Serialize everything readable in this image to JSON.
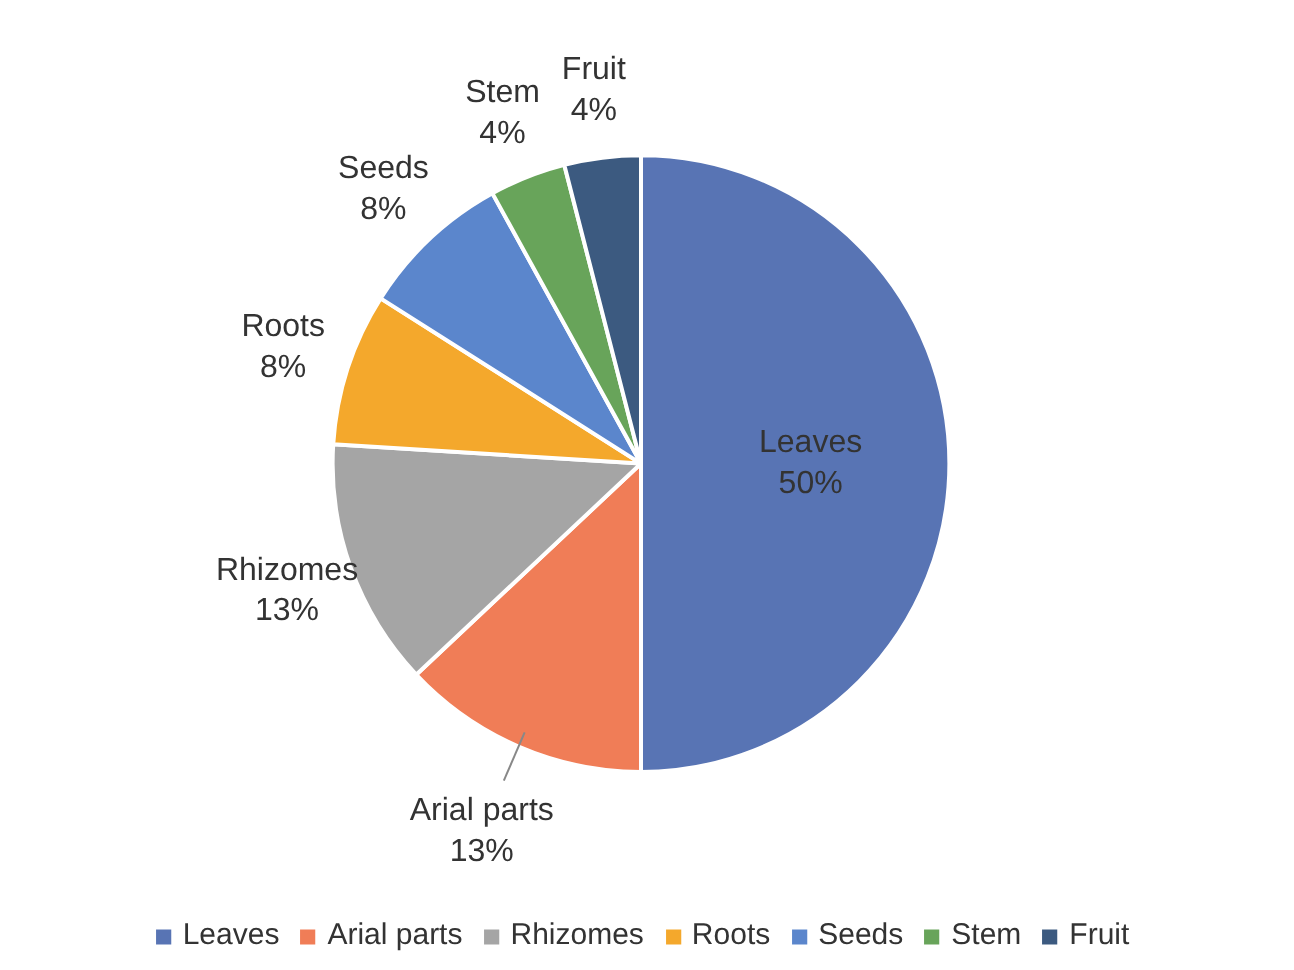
{
  "chart_data": {
    "type": "pie",
    "categories": [
      "Leaves",
      "Arial parts",
      "Rhizomes",
      "Roots",
      "Seeds",
      "Stem",
      "Fruit"
    ],
    "values": [
      50,
      13,
      13,
      8,
      8,
      4,
      4
    ],
    "value_labels": [
      "50%",
      "13%",
      "13%",
      "8%",
      "8%",
      "4%",
      "4%"
    ],
    "colors": [
      "#5874b4",
      "#f07d57",
      "#a5a5a5",
      "#f4a82c",
      "#5b86cc",
      "#68a45a",
      "#3c5a80"
    ],
    "legend": "bottom"
  }
}
